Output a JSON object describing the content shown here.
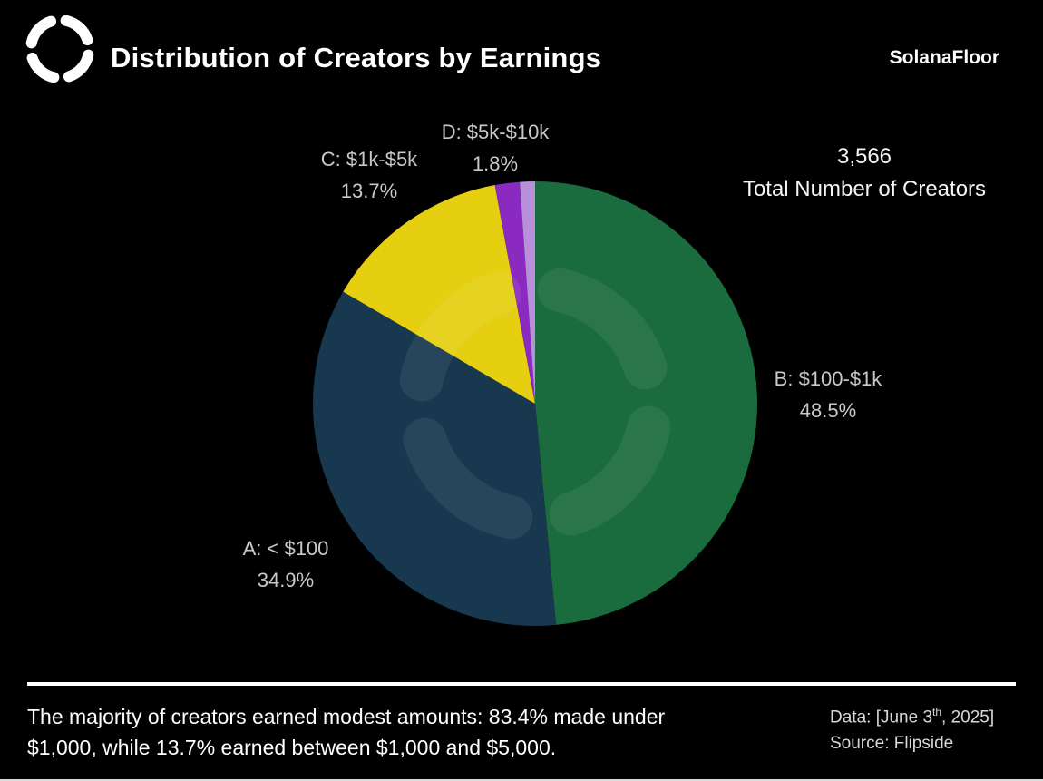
{
  "header": {
    "title": "Distribution of Creators by Earnings",
    "brand": "SolanaFloor"
  },
  "stats": {
    "total_value": "3,566",
    "total_label": "Total Number of Creators"
  },
  "chart_data": {
    "type": "pie",
    "title": "Distribution of Creators by Earnings",
    "direction": "clockwise",
    "start_angle": "12-oclock",
    "total_creators": 3566,
    "slices": [
      {
        "label": "B: $100-$1k",
        "pct": 48.5,
        "pct_label": "48.5%",
        "color": "#1a6b3e"
      },
      {
        "label": "A: < $100",
        "pct": 34.9,
        "pct_label": "34.9%",
        "color": "#17384e"
      },
      {
        "label": "C: $1k-$5k",
        "pct": 13.7,
        "pct_label": "13.7%",
        "color": "#e5cf10"
      },
      {
        "label": "D: $5k-$10k",
        "pct": 1.8,
        "pct_label": "1.8%",
        "color": "#8b2ac0"
      },
      {
        "label": "",
        "pct": 1.1,
        "pct_label": "",
        "color": "#b78fdb"
      }
    ]
  },
  "footer": {
    "summary_line1": "The majority of creators earned modest amounts: 83.4% made under",
    "summary_line2": "$1,000, while 13.7% earned between $1,000 and $5,000.",
    "date_prefix": "Data: [June 3",
    "date_sup": "th",
    "date_suffix": ", 2025]",
    "source": "Source: Flipside"
  }
}
